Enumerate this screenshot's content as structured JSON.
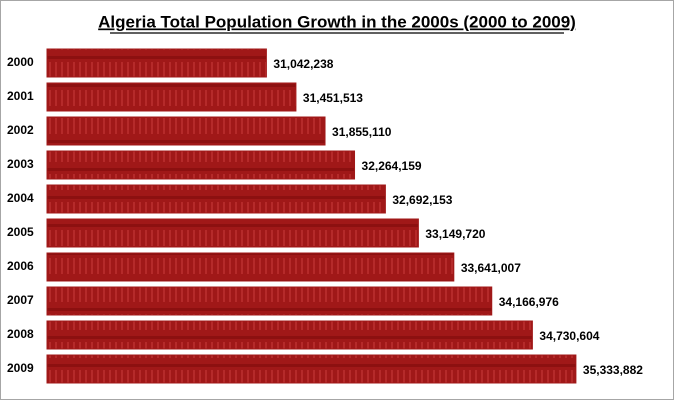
{
  "chart_data": {
    "type": "bar",
    "orientation": "horizontal",
    "title": "Algeria Total Population Growth in the 2000s (2000 to 2009)",
    "categories": [
      "2000",
      "2001",
      "2002",
      "2003",
      "2004",
      "2005",
      "2006",
      "2007",
      "2008",
      "2009"
    ],
    "values": [
      31042238,
      31451513,
      31855110,
      32264159,
      32692153,
      33149720,
      33641007,
      34166976,
      34730604,
      35333882
    ],
    "value_labels": [
      "31,042,238",
      "31,451,513",
      "31,855,110",
      "32,264,159",
      "32,692,153",
      "33,149,720",
      "33,641,007",
      "34,166,976",
      "34,730,604",
      "35,333,882"
    ],
    "color": "#a01818",
    "xlim": [
      28000000,
      36500000
    ]
  }
}
